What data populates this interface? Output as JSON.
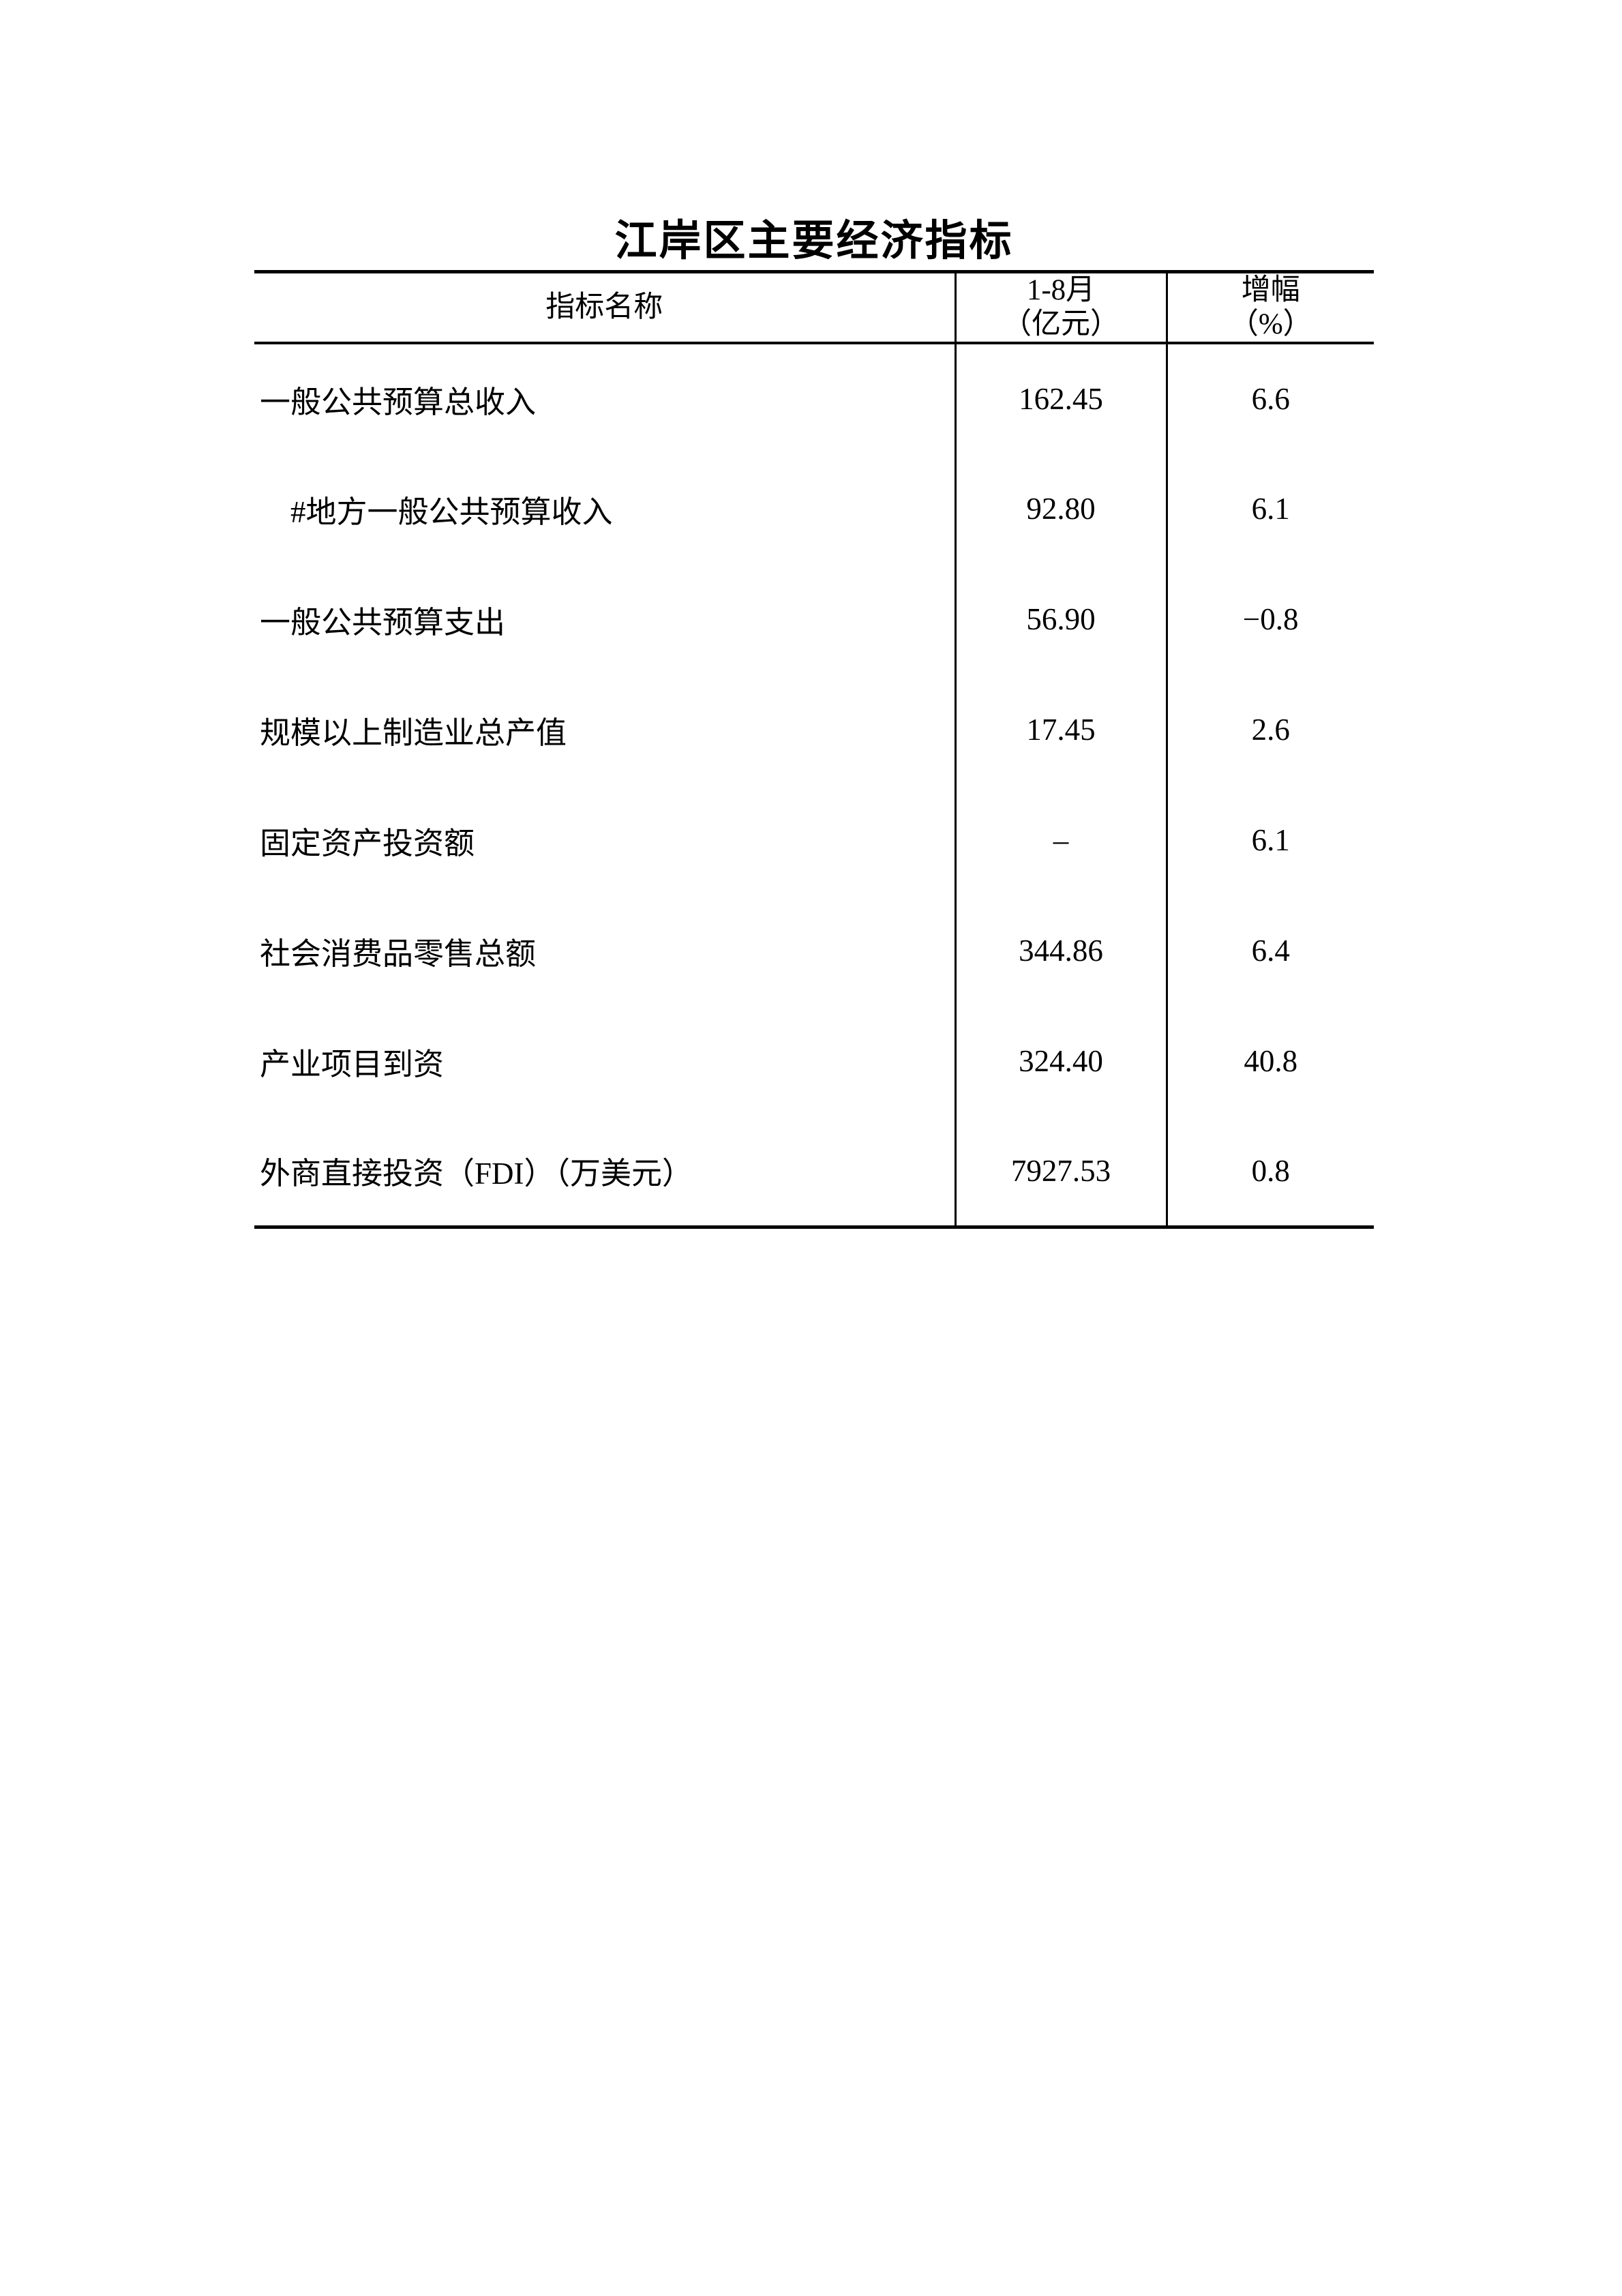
{
  "page": {
    "title": "江岸区主要经济指标"
  },
  "table": {
    "header": {
      "name_col": "指标名称",
      "period_line1": "1-8月",
      "period_line2": "（亿元）",
      "growth_line1": "增幅",
      "growth_line2": "（%）"
    },
    "rows": [
      {
        "name": "一般公共预算总收入",
        "value": "162.45",
        "growth": "6.6"
      },
      {
        "name": "　#地方一般公共预算收入",
        "value": "92.80",
        "growth": "6.1"
      },
      {
        "name": "一般公共预算支出",
        "value": "56.90",
        "growth": "−0.8"
      },
      {
        "name": "规模以上制造业总产值",
        "value": "17.45",
        "growth": "2.6"
      },
      {
        "name": "固定资产投资额",
        "value": "–",
        "growth": "6.1"
      },
      {
        "name": "社会消费品零售总额",
        "value": "344.86",
        "growth": "6.4"
      },
      {
        "name": "产业项目到资",
        "value": "324.40",
        "growth": "40.8"
      },
      {
        "name": "外商直接投资（FDI）（万美元）",
        "value": "7927.53",
        "growth": "0.8"
      }
    ]
  }
}
